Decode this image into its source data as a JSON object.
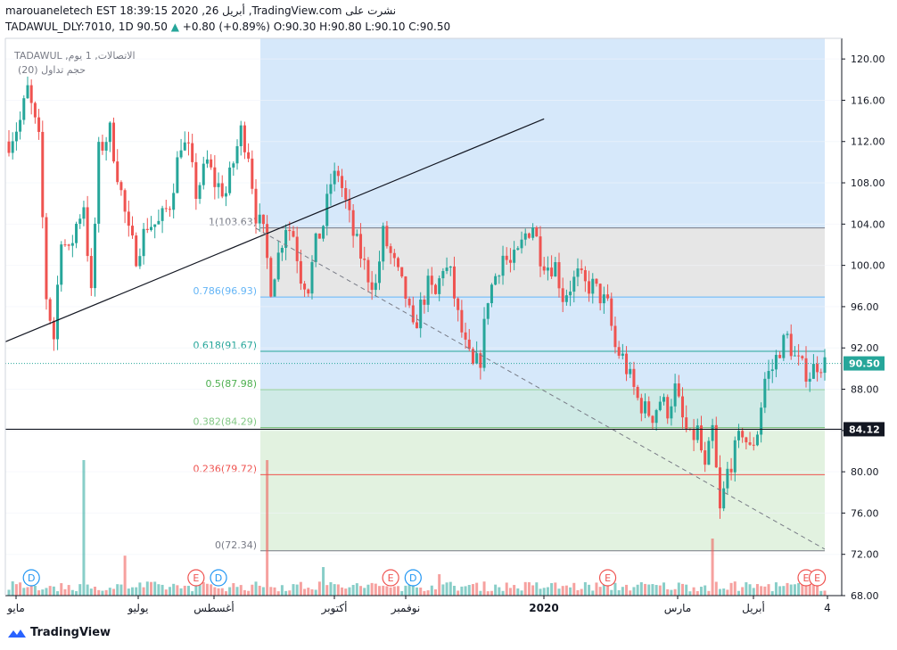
{
  "header": {
    "author": "marouaneletech",
    "timestamp": "EST 18:39:15 2020 ,26 أبريل",
    "published_on": ",TradingView.com نشرت على",
    "symbol": "TADAWUL_DLY:7010, 1D",
    "last": "90.50",
    "change": "+0.80 (+0.89%)",
    "ohlc": "O:90.30 H:90.80 L:90.10 C:90.50"
  },
  "legend": {
    "line1": "TADAWUL ,الاتصالات, 1 يوم",
    "line2": "حجم تداول (20)"
  },
  "footer": {
    "brand": "TradingView"
  },
  "colors": {
    "up": "#26a69a",
    "down": "#ef5350",
    "bg_blue": "#d6e8fa",
    "bg_grey": "#e6e6e6",
    "bg_teal": "#cfeae6",
    "bg_green": "#e2f2e0",
    "bg_pink": "#fbd7d6",
    "price_tag": "#26a69a"
  },
  "chart_data": {
    "type": "candlestick",
    "y_axis": {
      "min": 68,
      "max": 122,
      "ticks": [
        120,
        116,
        112,
        108,
        104,
        100,
        96,
        92,
        88,
        84,
        80,
        76,
        72,
        68
      ],
      "tick_labels": [
        "120.00",
        "116.00",
        "112.00",
        "108.00",
        "104.00",
        "100.00",
        "96.00",
        "92.00",
        "88.00",
        "84.00",
        "80.00",
        "76.00",
        "72.00",
        "68.00"
      ]
    },
    "x_axis": {
      "labels": [
        "مايو",
        "يوليو",
        "أغسطس",
        "أكتوبر",
        "نوفمبر",
        "2020",
        "مارس",
        "أبريل",
        "4"
      ]
    },
    "price_tags": [
      {
        "value": 90.5,
        "label": "90.50",
        "style": "last"
      },
      {
        "value": 84.12,
        "label": "84.12",
        "style": "line"
      }
    ],
    "fibonacci": [
      {
        "label": "1(103.63)",
        "value": 103.63,
        "color": "#787b86"
      },
      {
        "label": "0.786(96.93)",
        "value": 96.93,
        "color": "#64b5f6"
      },
      {
        "label": "0.618(91.67)",
        "value": 91.67,
        "color": "#26a69a"
      },
      {
        "label": "0.5(87.98)",
        "value": 87.98,
        "color": "#4caf50"
      },
      {
        "label": "0.382(84.29)",
        "value": 84.29,
        "color": "#81c784"
      },
      {
        "label": "0.236(79.72)",
        "value": 79.72,
        "color": "#ef5350"
      },
      {
        "label": "0(72.34)",
        "value": 72.34,
        "color": "#787b86"
      }
    ],
    "fib_top": 122,
    "horizontal_line": 84.12,
    "trendline": [
      {
        "i": 0,
        "v": 92.6
      },
      {
        "i": 143,
        "v": 114.2
      }
    ],
    "dashed_line": [
      {
        "i": 66,
        "v": 103.6
      },
      {
        "i": 218,
        "v": 72.5
      }
    ],
    "events": [
      {
        "i": 6,
        "type": "D"
      },
      {
        "i": 50,
        "type": "E"
      },
      {
        "i": 56,
        "type": "D"
      },
      {
        "i": 102,
        "type": "E"
      },
      {
        "i": 108,
        "type": "D"
      },
      {
        "i": 160,
        "type": "E"
      },
      {
        "i": 213,
        "type": "E"
      },
      {
        "i": 216,
        "type": "E"
      }
    ],
    "close_anchors": [
      [
        0,
        112
      ],
      [
        3,
        114
      ],
      [
        5,
        117
      ],
      [
        8,
        112
      ],
      [
        10,
        97
      ],
      [
        12,
        93
      ],
      [
        14,
        103
      ],
      [
        16,
        101
      ],
      [
        18,
        104
      ],
      [
        20,
        106
      ],
      [
        22,
        97
      ],
      [
        24,
        111
      ],
      [
        27,
        113
      ],
      [
        30,
        107
      ],
      [
        32,
        103
      ],
      [
        34,
        101
      ],
      [
        37,
        104
      ],
      [
        40,
        104
      ],
      [
        43,
        106
      ],
      [
        46,
        112
      ],
      [
        48,
        111
      ],
      [
        50,
        107
      ],
      [
        53,
        110
      ],
      [
        55,
        108
      ],
      [
        58,
        107
      ],
      [
        60,
        110
      ],
      [
        62,
        113
      ],
      [
        64,
        111
      ],
      [
        66,
        105
      ],
      [
        68,
        103
      ],
      [
        70,
        98
      ],
      [
        72,
        101
      ],
      [
        74,
        104
      ],
      [
        76,
        103
      ],
      [
        78,
        99
      ],
      [
        80,
        98
      ],
      [
        82,
        102
      ],
      [
        84,
        104
      ],
      [
        86,
        108
      ],
      [
        88,
        109
      ],
      [
        90,
        106
      ],
      [
        92,
        103
      ],
      [
        94,
        101
      ],
      [
        96,
        99
      ],
      [
        98,
        98
      ],
      [
        100,
        103
      ],
      [
        102,
        101
      ],
      [
        104,
        99
      ],
      [
        106,
        97
      ],
      [
        108,
        93.5
      ],
      [
        110,
        96
      ],
      [
        112,
        98
      ],
      [
        114,
        97
      ],
      [
        116,
        100
      ],
      [
        118,
        99
      ],
      [
        120,
        95
      ],
      [
        122,
        92
      ],
      [
        124,
        90
      ],
      [
        126,
        91
      ],
      [
        128,
        97
      ],
      [
        130,
        99
      ],
      [
        132,
        101
      ],
      [
        134,
        100
      ],
      [
        136,
        101
      ],
      [
        138,
        103
      ],
      [
        140,
        104
      ],
      [
        142,
        101
      ],
      [
        144,
        100
      ],
      [
        146,
        100
      ],
      [
        148,
        97
      ],
      [
        150,
        98
      ],
      [
        152,
        99
      ],
      [
        154,
        98
      ],
      [
        156,
        98
      ],
      [
        158,
        97
      ],
      [
        160,
        96
      ],
      [
        162,
        92
      ],
      [
        164,
        91
      ],
      [
        166,
        89
      ],
      [
        168,
        87
      ],
      [
        170,
        86
      ],
      [
        172,
        85.5
      ],
      [
        174,
        87
      ],
      [
        176,
        86
      ],
      [
        178,
        88
      ],
      [
        180,
        85
      ],
      [
        182,
        83
      ],
      [
        184,
        84
      ],
      [
        186,
        80
      ],
      [
        188,
        84
      ],
      [
        190,
        76
      ],
      [
        192,
        80
      ],
      [
        194,
        82
      ],
      [
        196,
        84
      ],
      [
        198,
        82
      ],
      [
        200,
        84
      ],
      [
        202,
        89
      ],
      [
        204,
        90
      ],
      [
        206,
        92
      ],
      [
        208,
        93
      ],
      [
        210,
        91
      ],
      [
        212,
        90
      ],
      [
        214,
        89.5
      ],
      [
        216,
        90.5
      ]
    ],
    "volume_spikes": [
      {
        "i": 20,
        "v": 0.95
      },
      {
        "i": 31,
        "v": 0.28
      },
      {
        "i": 69,
        "v": 0.95
      },
      {
        "i": 84,
        "v": 0.2
      },
      {
        "i": 115,
        "v": 0.15
      },
      {
        "i": 188,
        "v": 0.4
      }
    ]
  }
}
